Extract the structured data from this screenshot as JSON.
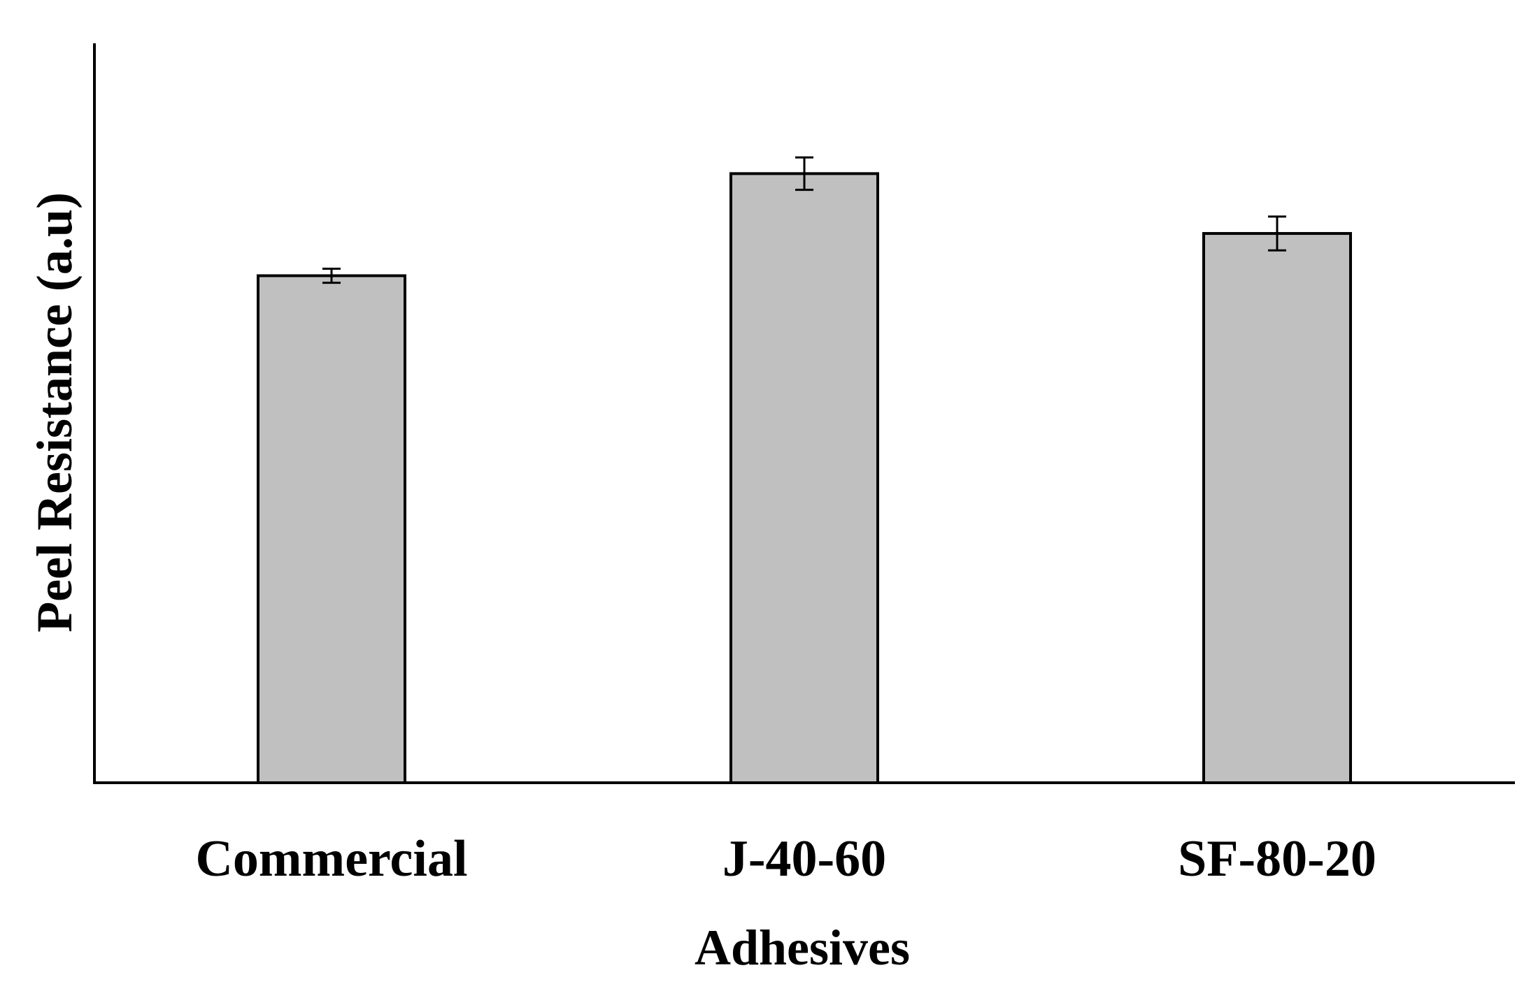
{
  "chart_data": {
    "type": "bar",
    "title": "",
    "xlabel": "Adhesives",
    "ylabel": "Peel Resistance (a.u)",
    "categories": [
      "Commercial",
      "J-40-60",
      "SF-80-20"
    ],
    "values": [
      72.0,
      86.5,
      78.0
    ],
    "errors": [
      1.0,
      2.3,
      2.4
    ],
    "ylim": [
      0,
      105
    ],
    "y_ticks_shown": false,
    "grid": false,
    "legend": "none",
    "colors": {
      "bar_fill": "#c0c0c0",
      "bar_stroke": "#000000",
      "axis": "#000000"
    }
  }
}
